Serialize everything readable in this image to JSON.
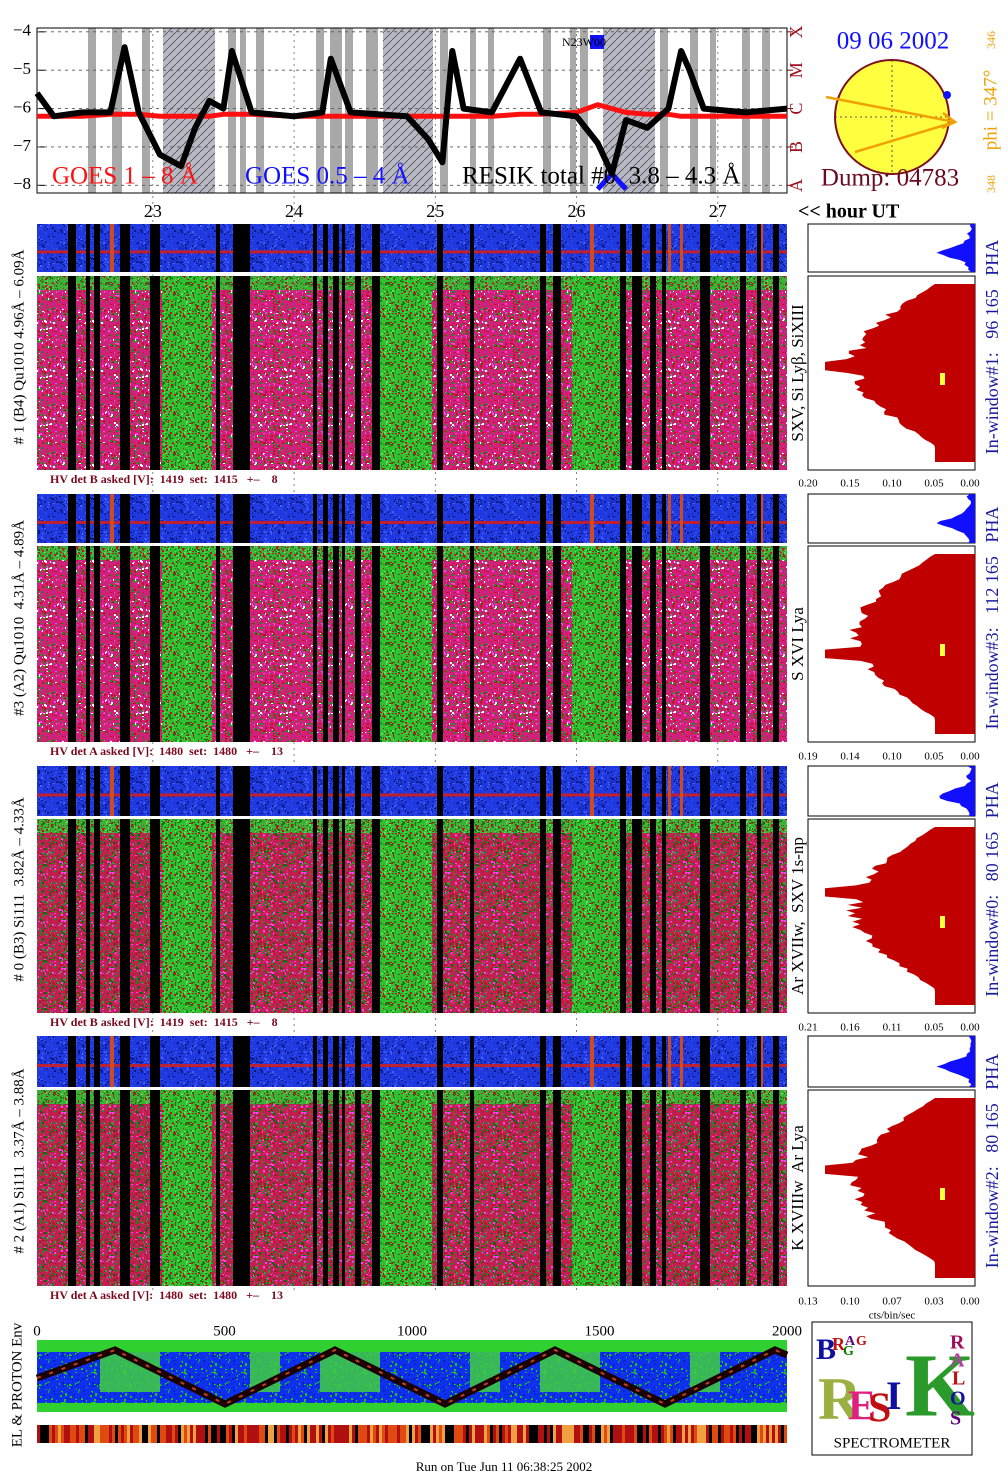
{
  "chart_data": {
    "type": "line",
    "x": [
      22.18,
      22.3,
      22.5,
      22.7,
      22.8,
      22.9,
      23.05,
      23.2,
      23.3,
      23.4,
      23.5,
      23.56,
      23.7,
      24.0,
      24.2,
      24.26,
      24.4,
      24.8,
      24.95,
      25.05,
      25.12,
      25.2,
      25.4,
      25.6,
      25.75,
      26.0,
      26.15,
      26.25,
      26.35,
      26.5,
      26.65,
      26.74,
      26.8,
      26.9,
      27.2,
      27.49
    ],
    "xlim": [
      22.18,
      27.49
    ],
    "xticks": [
      23,
      24,
      25,
      26,
      27
    ],
    "xlabel": "<< hour UT",
    "ylim": [
      -8.2,
      -3.9
    ],
    "yticks": [
      {
        "value": -4,
        "label": "−4"
      },
      {
        "value": -5,
        "label": "−5"
      },
      {
        "value": -6,
        "label": "−6"
      },
      {
        "value": -7,
        "label": "−7"
      },
      {
        "value": -8,
        "label": "−8"
      }
    ],
    "y2lim": [
      -8.2,
      -3.9
    ],
    "y2ticks": [
      {
        "value": -8,
        "label": "A"
      },
      {
        "value": -7,
        "label": "B"
      },
      {
        "value": -6,
        "label": "C"
      },
      {
        "value": -5,
        "label": "M"
      },
      {
        "value": -4,
        "label": "X"
      }
    ],
    "annotation": "N23W00",
    "grid": true,
    "series": [
      {
        "name": "GOES 1 – 8 Å",
        "color": "#ff1010",
        "values": [
          -6.2,
          -6.2,
          -6.2,
          -6.15,
          -6.15,
          -6.15,
          -6.2,
          -6.2,
          -6.2,
          -6.2,
          -6.15,
          -6.15,
          -6.15,
          -6.2,
          -6.2,
          -6.2,
          -6.2,
          -6.2,
          -6.2,
          -6.2,
          -6.2,
          -6.2,
          -6.2,
          -6.15,
          -6.15,
          -6.1,
          -5.9,
          -6.0,
          -6.1,
          -6.15,
          -6.15,
          -6.2,
          -6.2,
          -6.2,
          -6.2,
          -6.2
        ]
      },
      {
        "name": "GOES 0.5 – 4 Å",
        "color": "#1010ff",
        "values": [
          null,
          null,
          null,
          null,
          null,
          null,
          null,
          null,
          null,
          null,
          null,
          null,
          null,
          null,
          null,
          null,
          null,
          null,
          null,
          null,
          null,
          null,
          null,
          null,
          null,
          null,
          -8.1,
          -7.7,
          -8.1,
          null,
          null,
          null,
          null,
          null,
          null,
          null
        ]
      },
      {
        "name": "RESIK total #0  3.8 – 4.3 Å",
        "color": "#000000",
        "values": [
          -5.6,
          -6.2,
          -6.1,
          -6.1,
          -4.4,
          -6.1,
          -7.2,
          -7.5,
          -6.5,
          -5.8,
          -6.0,
          -4.5,
          -6.1,
          -6.2,
          -6.1,
          -4.7,
          -6.1,
          -6.2,
          -6.8,
          -7.4,
          -4.5,
          -6.0,
          -6.1,
          -4.7,
          -6.1,
          -6.2,
          -6.9,
          -7.7,
          -6.3,
          -6.5,
          -6.0,
          -4.5,
          -5.0,
          -6.0,
          -6.1,
          -6.0
        ]
      }
    ]
  },
  "sun": {
    "date": "09 06 2002",
    "dump": "Dump: 04783",
    "phi": "phi = 347°",
    "phi_low": "346",
    "phi_high": "348"
  },
  "panels": [
    {
      "label": "# 1 (B4) Qu1010 4.96Å – 6.09Å",
      "lines": "SXV, Si Lyβ, SiXIII",
      "window": "In-window#1:   96 165   PHA",
      "hv": "HV det B asked [V]:  1419  set:  1415   +–    8",
      "ticks": [
        "0.20",
        "0.15",
        "0.10",
        "0.05",
        "0.00"
      ]
    },
    {
      "label": "#3 (A2) Qu1010  4.31Å – 4.89Å",
      "lines": "S XVI Lya",
      "window": "In-window#3:   112 165   PHA",
      "hv": "HV det A asked [V]:  1480  set:  1480   +–    13",
      "ticks": [
        "0.19",
        "0.14",
        "0.10",
        "0.05",
        "0.00"
      ]
    },
    {
      "label": "# 0 (B3) Si111  3.82Å – 4.33Å",
      "lines": "Ar XVIIw,  SXV 1s-np",
      "window": "In-window#0:   80 165   PHA",
      "hv": "HV det B asked [V]:  1419  set:  1415   +–    8",
      "ticks": [
        "0.21",
        "0.16",
        "0.11",
        "0.05",
        "0.00"
      ]
    },
    {
      "label": "# 2 (A1) Si111  3.37Å – 3.88Å",
      "lines": "K XVIIIw  Ar Lya",
      "window": "In-window#2:   80 165   PHA",
      "hv": "HV det A asked [V]:  1480  set:  1480   +–    13",
      "ticks": [
        "0.13",
        "0.10",
        "0.07",
        "0.03",
        "0.00"
      ]
    }
  ],
  "cts_label": "cts/bin/sec",
  "environment": {
    "label": "EL & PROTON Env",
    "ticks": [
      "0",
      "500",
      "1000",
      "1500",
      "2000"
    ]
  },
  "logo": {
    "letters": [
      "B",
      "R",
      "A",
      "G",
      "G",
      "R",
      "E",
      "S",
      "I",
      "K",
      "S",
      "O",
      "L",
      "A",
      "R"
    ],
    "name": "SPECTROMETER"
  },
  "footer": "Run on Tue Jun 11 06:38:25 2002"
}
